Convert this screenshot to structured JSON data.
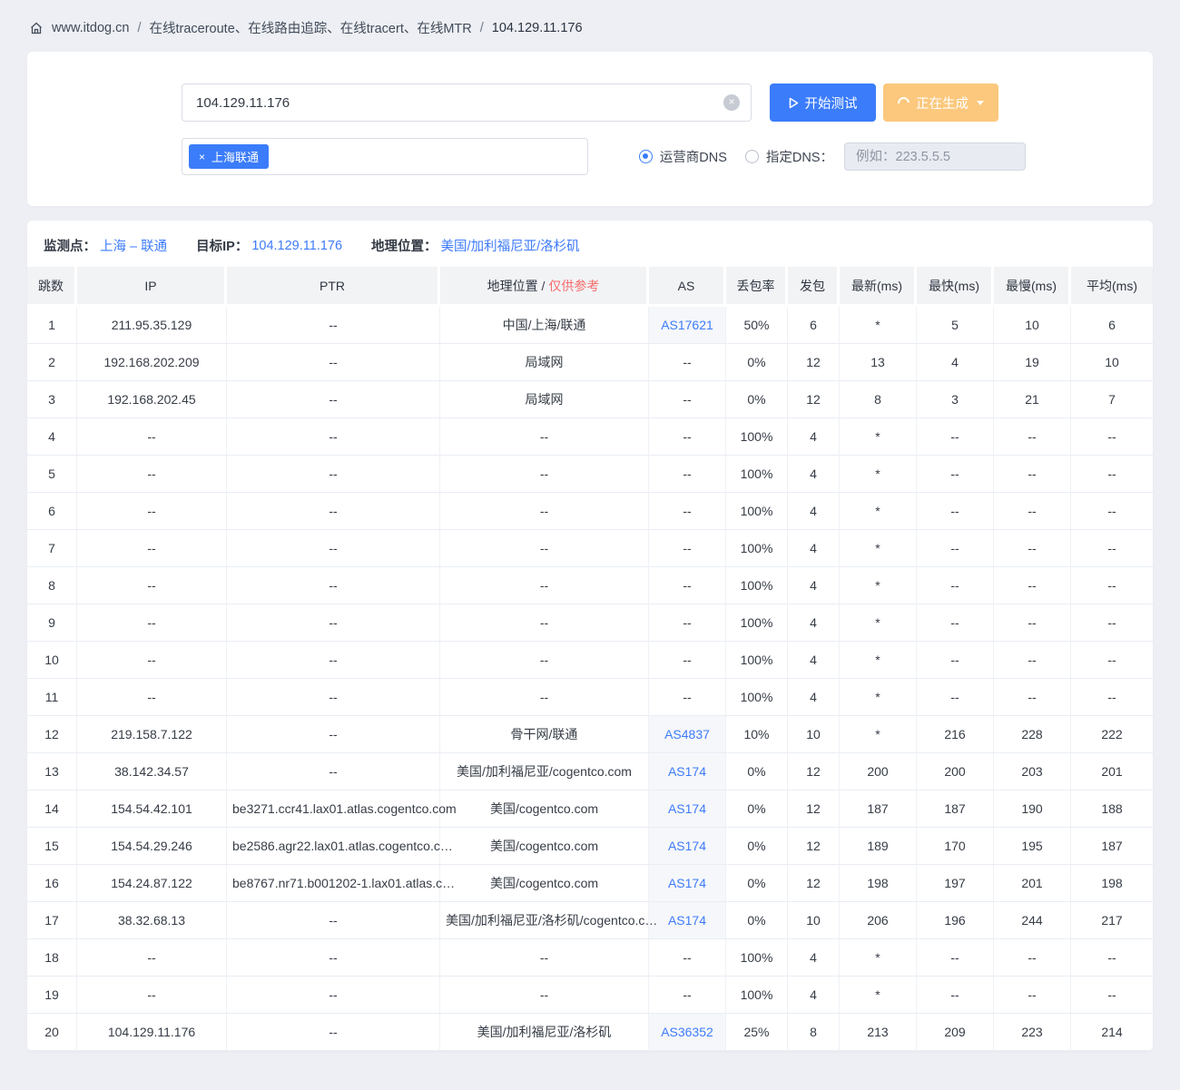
{
  "colors": {
    "primary": "#3b7cfa",
    "orange": "#fbc87d",
    "red": "#f56c6c",
    "link": "#3e7bfa"
  },
  "breadcrumb": {
    "site": "www.itdog.cn",
    "separator": "/",
    "path": "在线traceroute、在线路由追踪、在线tracert、在线MTR",
    "target": "104.129.11.176"
  },
  "query_panel": {
    "target_input_value": "104.129.11.176",
    "clear_icon": "×",
    "start_button": "开始测试",
    "generating_button": "正在生成",
    "node_tag": "上海联通",
    "tag_remove": "×",
    "dns_radio_isp": "运营商DNS",
    "dns_radio_custom": "指定DNS：",
    "dns_input_placeholder": "例如：223.5.5.5"
  },
  "result_info": {
    "node_label": "监测点：",
    "node_value": "上海 – 联通",
    "ip_label": "目标IP：",
    "ip_value": "104.129.11.176",
    "geo_label": "地理位置：",
    "geo_value": "美国/加利福尼亚/洛杉矶"
  },
  "table": {
    "headers": {
      "hop": "跳数",
      "ip": "IP",
      "ptr": "PTR",
      "location": "地理位置",
      "location_sep": " / ",
      "location_note": "仅供参考",
      "as": "AS",
      "loss": "丢包率",
      "sent": "发包",
      "latest": "最新(ms)",
      "fastest": "最快(ms)",
      "slowest": "最慢(ms)",
      "avg": "平均(ms)"
    },
    "rows": [
      {
        "hop": "1",
        "ip": "211.95.35.129",
        "ptr": "--",
        "location": "中国/上海/联通",
        "as": "AS17621",
        "as_is_link": true,
        "loss": "50%",
        "sent": "6",
        "latest": "*",
        "fastest": "5",
        "slowest": "10",
        "avg": "6"
      },
      {
        "hop": "2",
        "ip": "192.168.202.209",
        "ptr": "--",
        "location": "局域网",
        "as": "--",
        "as_is_link": false,
        "loss": "0%",
        "sent": "12",
        "latest": "13",
        "fastest": "4",
        "slowest": "19",
        "avg": "10"
      },
      {
        "hop": "3",
        "ip": "192.168.202.45",
        "ptr": "--",
        "location": "局域网",
        "as": "--",
        "as_is_link": false,
        "loss": "0%",
        "sent": "12",
        "latest": "8",
        "fastest": "3",
        "slowest": "21",
        "avg": "7"
      },
      {
        "hop": "4",
        "ip": "--",
        "ptr": "--",
        "location": "--",
        "as": "--",
        "as_is_link": false,
        "loss": "100%",
        "sent": "4",
        "latest": "*",
        "fastest": "--",
        "slowest": "--",
        "avg": "--"
      },
      {
        "hop": "5",
        "ip": "--",
        "ptr": "--",
        "location": "--",
        "as": "--",
        "as_is_link": false,
        "loss": "100%",
        "sent": "4",
        "latest": "*",
        "fastest": "--",
        "slowest": "--",
        "avg": "--"
      },
      {
        "hop": "6",
        "ip": "--",
        "ptr": "--",
        "location": "--",
        "as": "--",
        "as_is_link": false,
        "loss": "100%",
        "sent": "4",
        "latest": "*",
        "fastest": "--",
        "slowest": "--",
        "avg": "--"
      },
      {
        "hop": "7",
        "ip": "--",
        "ptr": "--",
        "location": "--",
        "as": "--",
        "as_is_link": false,
        "loss": "100%",
        "sent": "4",
        "latest": "*",
        "fastest": "--",
        "slowest": "--",
        "avg": "--"
      },
      {
        "hop": "8",
        "ip": "--",
        "ptr": "--",
        "location": "--",
        "as": "--",
        "as_is_link": false,
        "loss": "100%",
        "sent": "4",
        "latest": "*",
        "fastest": "--",
        "slowest": "--",
        "avg": "--"
      },
      {
        "hop": "9",
        "ip": "--",
        "ptr": "--",
        "location": "--",
        "as": "--",
        "as_is_link": false,
        "loss": "100%",
        "sent": "4",
        "latest": "*",
        "fastest": "--",
        "slowest": "--",
        "avg": "--"
      },
      {
        "hop": "10",
        "ip": "--",
        "ptr": "--",
        "location": "--",
        "as": "--",
        "as_is_link": false,
        "loss": "100%",
        "sent": "4",
        "latest": "*",
        "fastest": "--",
        "slowest": "--",
        "avg": "--"
      },
      {
        "hop": "11",
        "ip": "--",
        "ptr": "--",
        "location": "--",
        "as": "--",
        "as_is_link": false,
        "loss": "100%",
        "sent": "4",
        "latest": "*",
        "fastest": "--",
        "slowest": "--",
        "avg": "--"
      },
      {
        "hop": "12",
        "ip": "219.158.7.122",
        "ptr": "--",
        "location": "骨干网/联通",
        "as": "AS4837",
        "as_is_link": true,
        "loss": "10%",
        "sent": "10",
        "latest": "*",
        "fastest": "216",
        "slowest": "228",
        "avg": "222"
      },
      {
        "hop": "13",
        "ip": "38.142.34.57",
        "ptr": "--",
        "location": "美国/加利福尼亚/cogentco.com",
        "as": "AS174",
        "as_is_link": true,
        "loss": "0%",
        "sent": "12",
        "latest": "200",
        "fastest": "200",
        "slowest": "203",
        "avg": "201"
      },
      {
        "hop": "14",
        "ip": "154.54.42.101",
        "ptr": "be3271.ccr41.lax01.atlas.cogentco.com",
        "location": "美国/cogentco.com",
        "as": "AS174",
        "as_is_link": true,
        "loss": "0%",
        "sent": "12",
        "latest": "187",
        "fastest": "187",
        "slowest": "190",
        "avg": "188"
      },
      {
        "hop": "15",
        "ip": "154.54.29.246",
        "ptr": "be2586.agr22.lax01.atlas.cogentco.c…",
        "location": "美国/cogentco.com",
        "as": "AS174",
        "as_is_link": true,
        "loss": "0%",
        "sent": "12",
        "latest": "189",
        "fastest": "170",
        "slowest": "195",
        "avg": "187"
      },
      {
        "hop": "16",
        "ip": "154.24.87.122",
        "ptr": "be8767.nr71.b001202-1.lax01.atlas.c…",
        "location": "美国/cogentco.com",
        "as": "AS174",
        "as_is_link": true,
        "loss": "0%",
        "sent": "12",
        "latest": "198",
        "fastest": "197",
        "slowest": "201",
        "avg": "198"
      },
      {
        "hop": "17",
        "ip": "38.32.68.13",
        "ptr": "--",
        "location": "美国/加利福尼亚/洛杉矶/cogentco.c…",
        "as": "AS174",
        "as_is_link": true,
        "loss": "0%",
        "sent": "10",
        "latest": "206",
        "fastest": "196",
        "slowest": "244",
        "avg": "217"
      },
      {
        "hop": "18",
        "ip": "--",
        "ptr": "--",
        "location": "--",
        "as": "--",
        "as_is_link": false,
        "loss": "100%",
        "sent": "4",
        "latest": "*",
        "fastest": "--",
        "slowest": "--",
        "avg": "--"
      },
      {
        "hop": "19",
        "ip": "--",
        "ptr": "--",
        "location": "--",
        "as": "--",
        "as_is_link": false,
        "loss": "100%",
        "sent": "4",
        "latest": "*",
        "fastest": "--",
        "slowest": "--",
        "avg": "--"
      },
      {
        "hop": "20",
        "ip": "104.129.11.176",
        "ptr": "--",
        "location": "美国/加利福尼亚/洛杉矶",
        "as": "AS36352",
        "as_is_link": true,
        "loss": "25%",
        "sent": "8",
        "latest": "213",
        "fastest": "209",
        "slowest": "223",
        "avg": "214"
      }
    ]
  }
}
